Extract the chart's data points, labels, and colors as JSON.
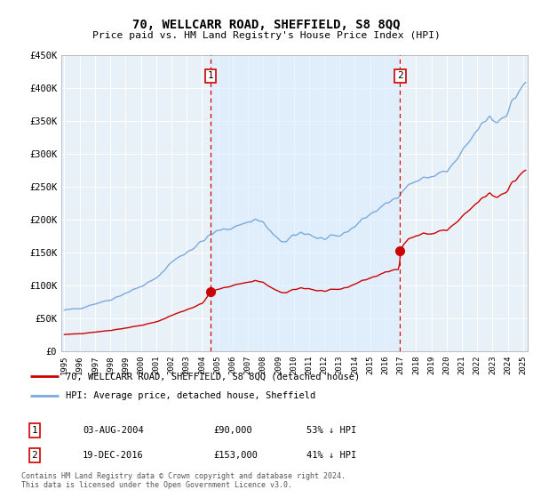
{
  "title": "70, WELLCARR ROAD, SHEFFIELD, S8 8QQ",
  "subtitle": "Price paid vs. HM Land Registry's House Price Index (HPI)",
  "legend_line1": "70, WELLCARR ROAD, SHEFFIELD, S8 8QQ (detached house)",
  "legend_line2": "HPI: Average price, detached house, Sheffield",
  "footer": "Contains HM Land Registry data © Crown copyright and database right 2024.\nThis data is licensed under the Open Government Licence v3.0.",
  "transaction1_label": "1",
  "transaction1_date": "03-AUG-2004",
  "transaction1_price": "£90,000",
  "transaction1_hpi": "53% ↓ HPI",
  "transaction2_label": "2",
  "transaction2_date": "19-DEC-2016",
  "transaction2_price": "£153,000",
  "transaction2_hpi": "41% ↓ HPI",
  "red_color": "#cc0000",
  "blue_color": "#7aaadd",
  "shade_color": "#ddeeff",
  "plot_bg": "#e8f0f8",
  "ylim": [
    0,
    450000
  ],
  "xlim_start": 1994.8,
  "xlim_end": 2025.3,
  "yticks": [
    0,
    50000,
    100000,
    150000,
    200000,
    250000,
    300000,
    350000,
    400000,
    450000
  ],
  "ytick_labels": [
    "£0",
    "£50K",
    "£100K",
    "£150K",
    "£200K",
    "£250K",
    "£300K",
    "£350K",
    "£400K",
    "£450K"
  ],
  "marker1_x": 2004.58,
  "marker1_y": 90000,
  "marker2_x": 2016.96,
  "marker2_y": 153000,
  "xtick_years": [
    1995,
    1996,
    1997,
    1998,
    1999,
    2000,
    2001,
    2002,
    2003,
    2004,
    2005,
    2006,
    2007,
    2008,
    2009,
    2010,
    2011,
    2012,
    2013,
    2014,
    2015,
    2016,
    2017,
    2018,
    2019,
    2020,
    2021,
    2022,
    2023,
    2024,
    2025
  ]
}
